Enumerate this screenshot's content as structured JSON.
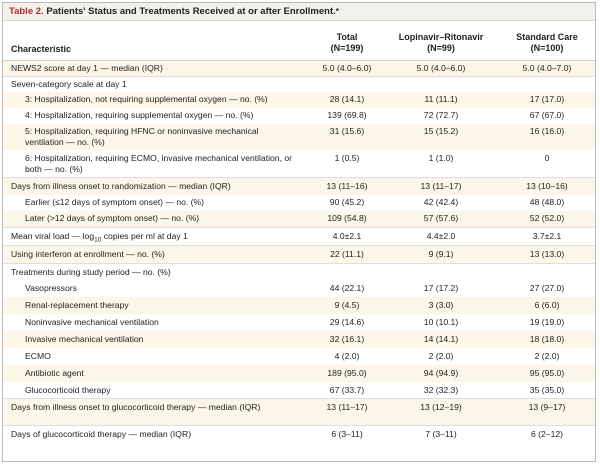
{
  "table": {
    "label": "Table 2.",
    "title": "Patients' Status and Treatments Received at or after Enrollment.",
    "title_mark": "*",
    "columns": {
      "characteristic": "Characteristic",
      "total": [
        "Total",
        "(N=199)"
      ],
      "lopinavir": [
        "Lopinavir–Ritonavir",
        "(N=99)"
      ],
      "standard": [
        "Standard Care",
        "(N=100)"
      ]
    },
    "rows": [
      {
        "label": "NEWS2 score at day 1 — median (IQR)",
        "total": "5.0 (4.0–6.0)",
        "lopinavir": "5.0 (4.0–6.0)",
        "standard": "5.0 (4.0–7.0)"
      },
      {
        "label": "Seven-category scale at day 1",
        "total": "",
        "lopinavir": "",
        "standard": ""
      },
      {
        "label": "3: Hospitalization, not requiring supplemental oxygen — no. (%)",
        "total": "28 (14.1)",
        "lopinavir": "11 (11.1)",
        "standard": "17 (17.0)"
      },
      {
        "label": "4: Hospitalization, requiring supplemental oxygen — no. (%)",
        "total": "139 (69.8)",
        "lopinavir": "72 (72.7)",
        "standard": "67 (67.0)"
      },
      {
        "label": "5: Hospitalization, requiring HFNC or noninvasive mechanical ventilation — no. (%)",
        "total": "31 (15.6)",
        "lopinavir": "15 (15.2)",
        "standard": "16 (16.0)"
      },
      {
        "label": "6: Hospitalization, requiring ECMO, invasive mechanical ventilation, or both — no. (%)",
        "total": "1 (0.5)",
        "lopinavir": "1 (1.0)",
        "standard": "0"
      },
      {
        "label": "Days from illness onset to randomization — median (IQR)",
        "total": "13 (11–16)",
        "lopinavir": "13 (11–17)",
        "standard": "13 (10–16)"
      },
      {
        "label": "Earlier (≤12 days of symptom onset) — no. (%)",
        "total": "90 (45.2)",
        "lopinavir": "42 (42.4)",
        "standard": "48 (48.0)"
      },
      {
        "label": "Later (>12 days of symptom onset) — no. (%)",
        "total": "109 (54.8)",
        "lopinavir": "57 (57.6)",
        "standard": "52 (52.0)"
      },
      {
        "label_pre": "Mean viral load — log",
        "label_sub": "10",
        "label_post": " copies per ml at day 1",
        "total": "4.0±2.1",
        "lopinavir": "4.4±2.0",
        "standard": "3.7±2.1"
      },
      {
        "label": "Using interferon at enrollment — no. (%)",
        "total": "22 (11.1)",
        "lopinavir": "9 (9.1)",
        "standard": "13 (13.0)"
      },
      {
        "label": "Treatments during study period — no. (%)",
        "total": "",
        "lopinavir": "",
        "standard": ""
      },
      {
        "label": "Vasopressors",
        "total": "44 (22.1)",
        "lopinavir": "17 (17.2)",
        "standard": "27 (27.0)"
      },
      {
        "label": "Renal-replacement therapy",
        "total": "9 (4.5)",
        "lopinavir": "3 (3.0)",
        "standard": "6 (6.0)"
      },
      {
        "label": "Noninvasive mechanical ventilation",
        "total": "29 (14.6)",
        "lopinavir": "10 (10.1)",
        "standard": "19 (19.0)"
      },
      {
        "label": "Invasive mechanical ventilation",
        "total": "32 (16.1)",
        "lopinavir": "14 (14.1)",
        "standard": "18 (18.0)"
      },
      {
        "label": "ECMO",
        "total": "4 (2.0)",
        "lopinavir": "2 (2.0)",
        "standard": "2 (2.0)"
      },
      {
        "label": "Antibiotic agent",
        "total": "189 (95.0)",
        "lopinavir": "94 (94.9)",
        "standard": "95 (95.0)"
      },
      {
        "label": "Glucocorticoid therapy",
        "total": "67 (33.7)",
        "lopinavir": "32 (32.3)",
        "standard": "35 (35.0)"
      },
      {
        "label": "Days from illness onset to glucocorticoid therapy — median (IQR)",
        "total": "13 (11–17)",
        "lopinavir": "13 (12–19)",
        "standard": "13 (9–17)"
      },
      {
        "label": "Days of glucocorticoid therapy — median (IQR)",
        "total": "6 (3–11)",
        "lopinavir": "7 (3–11)",
        "standard": "6 (2–12)"
      }
    ]
  }
}
